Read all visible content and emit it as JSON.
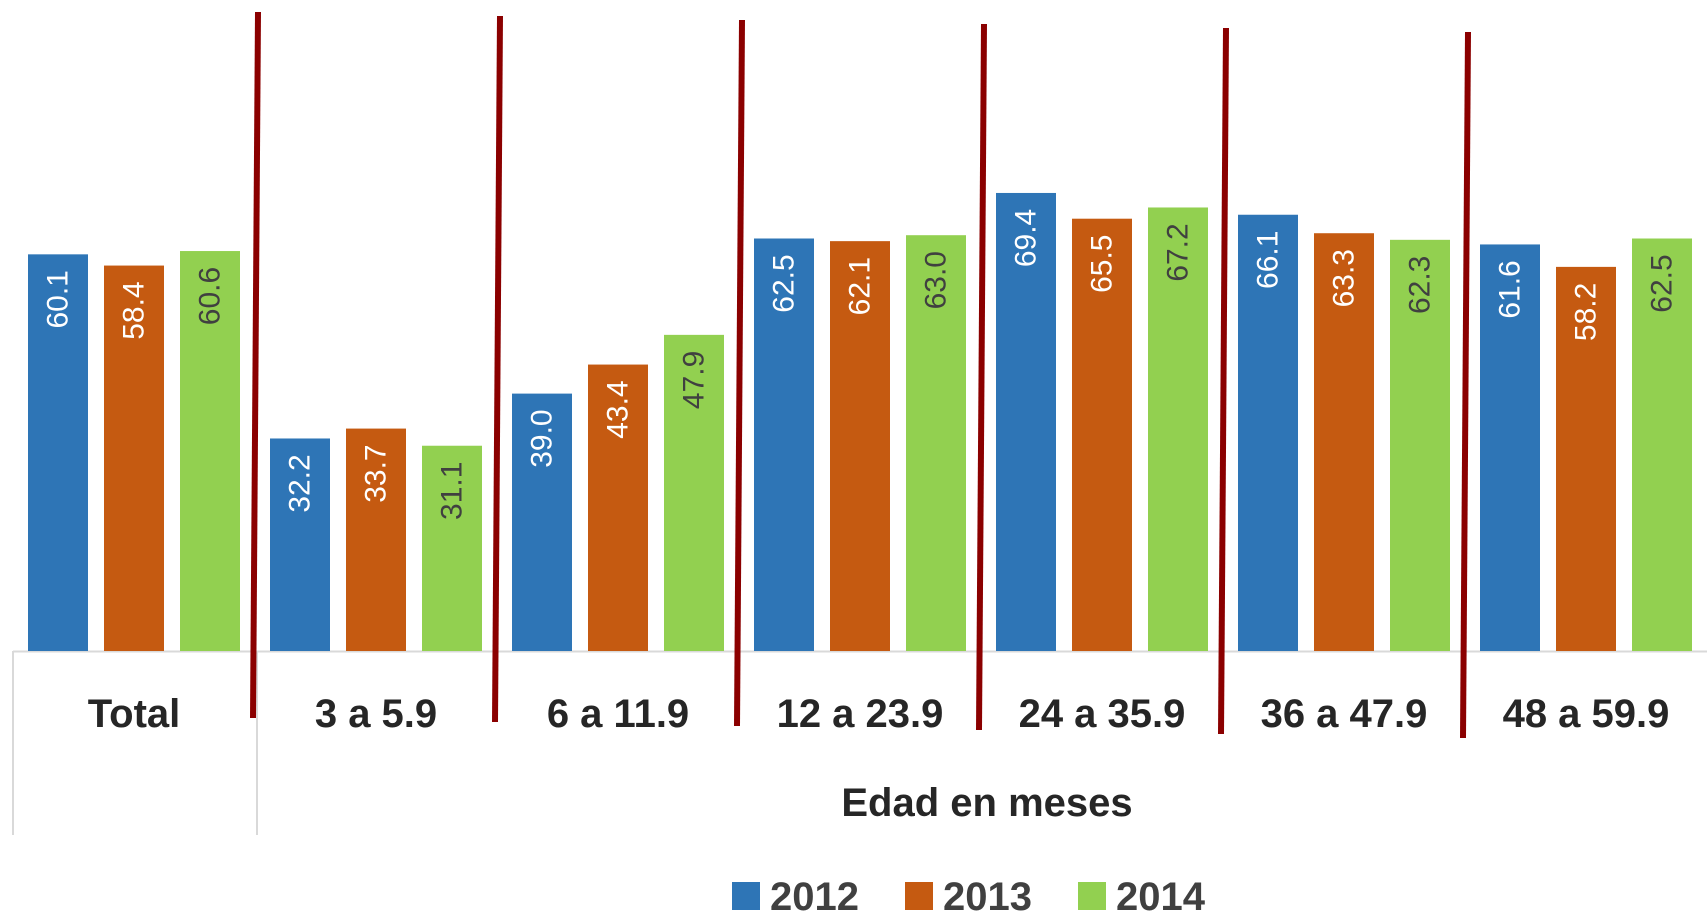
{
  "chart_data": {
    "type": "bar",
    "categories": [
      "Total",
      "3 a 5.9",
      "6 a 11.9",
      "12 a 23.9",
      "24 a 35.9",
      "36 a 47.9",
      "48 a 59.9"
    ],
    "series": [
      {
        "name": "2012",
        "color": "#2E75B6",
        "values": [
          60.1,
          32.2,
          39.0,
          62.5,
          69.4,
          66.1,
          61.6
        ],
        "labels": [
          "60.1",
          "32.2",
          "39.0",
          "62.5",
          "69.4",
          "66.1",
          "61.6"
        ],
        "label_color": "#ffffff"
      },
      {
        "name": "2013",
        "color": "#C55A11",
        "values": [
          58.4,
          33.7,
          43.4,
          62.1,
          65.5,
          63.3,
          58.2
        ],
        "labels": [
          "58.4",
          "33.7",
          "43.4",
          "62.1",
          "65.5",
          "63.3",
          "58.2"
        ],
        "label_color": "#ffffff"
      },
      {
        "name": "2014",
        "color": "#92D050",
        "values": [
          60.6,
          31.1,
          47.9,
          63.0,
          67.2,
          62.3,
          62.5
        ],
        "labels": [
          "60.6",
          "31.1",
          "47.9",
          "63.0",
          "67.2",
          "62.3",
          "62.5"
        ],
        "label_color": "#404040"
      }
    ],
    "xlabel": "Edad en meses",
    "ylim": [
      0,
      80
    ],
    "grid": false,
    "legend_position": "bottom",
    "separator_color": "#8B0000"
  }
}
